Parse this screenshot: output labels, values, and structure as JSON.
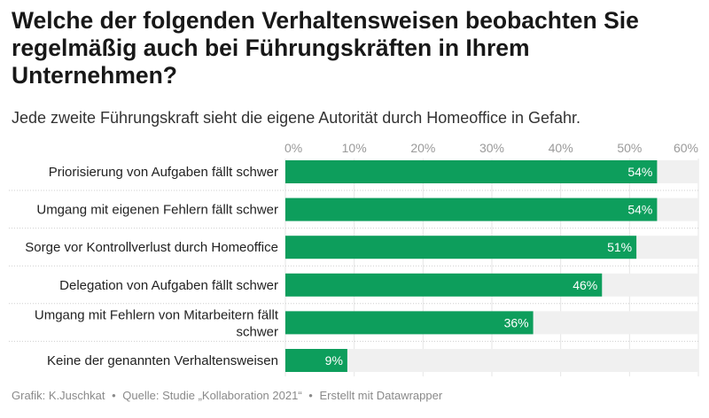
{
  "title": "Welche der folgenden Verhaltensweisen beobachten Sie regelmäßig auch bei Führungskräften in Ihrem Unternehmen?",
  "subtitle": "Jede zweite Führungskraft sieht die eigene Autorität durch Homeoffice in Gefahr.",
  "chart_data": {
    "type": "bar",
    "orientation": "horizontal",
    "categories": [
      "Priorisierung von Aufgaben fällt schwer",
      "Umgang mit eigenen Fehlern fällt schwer",
      "Sorge vor Kontrollverlust durch Homeoffice",
      "Delegation von Aufgaben fällt schwer",
      "Umgang mit Fehlern von Mitarbeitern fällt schwer",
      "Keine der genannten Verhaltensweisen"
    ],
    "values": [
      54,
      54,
      51,
      46,
      36,
      9
    ],
    "value_labels": [
      "54%",
      "54%",
      "51%",
      "46%",
      "36%",
      "9%"
    ],
    "xlim": [
      0,
      60
    ],
    "ticks": [
      0,
      10,
      20,
      30,
      40,
      50,
      60
    ],
    "tick_labels": [
      "0%",
      "10%",
      "20%",
      "30%",
      "40%",
      "50%",
      "60%"
    ],
    "tick_position": "top",
    "grid": true,
    "colors": {
      "bar": "#0d9e5c",
      "track": "#f0f0f0",
      "value_label": "#ffffff",
      "tick_label": "#9a9a9a"
    }
  },
  "footer": {
    "grafik": "Grafik: K.Juschkat",
    "quelle": "Quelle: Studie „Kollaboration 2021“",
    "tool": "Erstellt mit Datawrapper",
    "separator": "•"
  }
}
